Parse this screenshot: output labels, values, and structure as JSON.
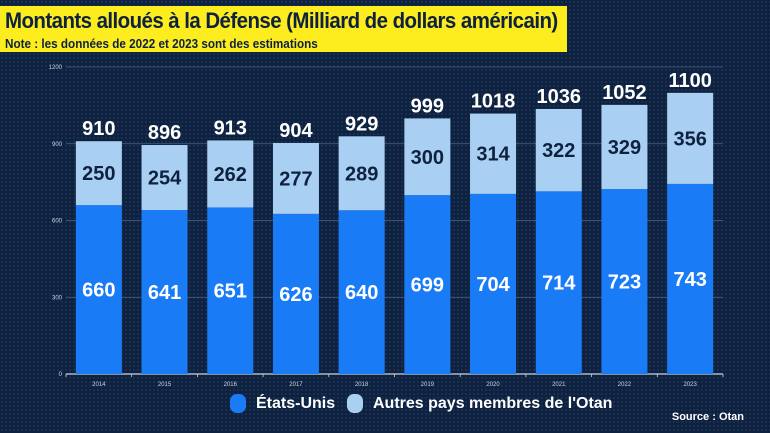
{
  "title": "Montants alloués à la Défense (Milliard de dollars américain)",
  "subtitle": "Note : les données de 2022 et 2023 sont des estimations",
  "source": "Source : Otan",
  "chart_data": {
    "type": "bar",
    "stacked": true,
    "categories": [
      "2014",
      "2015",
      "2016",
      "2017",
      "2018",
      "2019",
      "2020",
      "2021",
      "2022",
      "2023"
    ],
    "series": [
      {
        "name": "États-Unis",
        "color": "#1a7bf7",
        "values": [
          660,
          641,
          651,
          626,
          640,
          699,
          704,
          714,
          723,
          743
        ]
      },
      {
        "name": "Autres pays membres de l'Otan",
        "color": "#a9d0f2",
        "values": [
          250,
          254,
          262,
          277,
          289,
          300,
          314,
          322,
          329,
          356
        ]
      }
    ],
    "totals": [
      910,
      896,
      913,
      904,
      929,
      999,
      1018,
      1036,
      1052,
      1100
    ],
    "ylim": [
      0,
      1200
    ],
    "yticks": [
      0,
      300,
      600,
      900,
      1200
    ],
    "grid": true,
    "legend": "bottom"
  }
}
